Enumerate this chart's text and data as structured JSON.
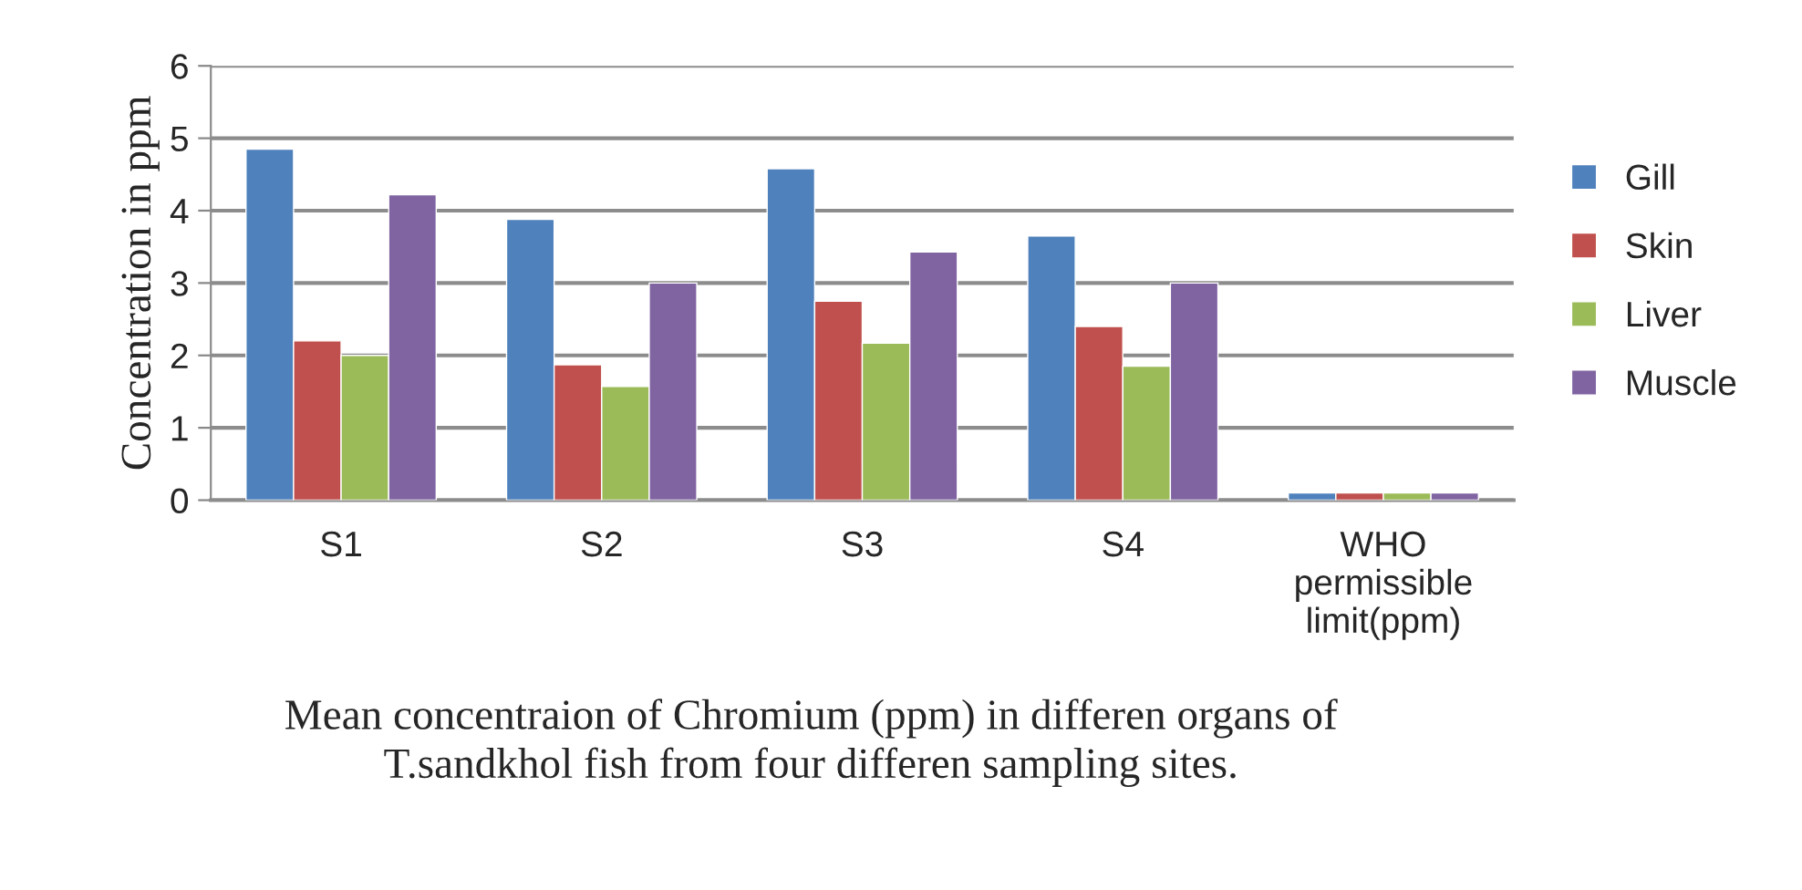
{
  "chart_data": {
    "type": "bar",
    "ylabel": "Concentration in ppm",
    "categories": [
      "S1",
      "S2",
      "S3",
      "S4",
      "WHO\npermissible\nlimit(ppm)"
    ],
    "series": [
      {
        "name": "Gill",
        "color": "#4f81bd",
        "values": [
          4.85,
          3.88,
          4.58,
          3.65,
          0.1
        ]
      },
      {
        "name": "Skin",
        "color": "#c0504d",
        "values": [
          2.2,
          1.87,
          2.75,
          2.4,
          0.1
        ]
      },
      {
        "name": "Liver",
        "color": "#9bbb59",
        "values": [
          2.0,
          1.57,
          2.17,
          1.85,
          0.1
        ]
      },
      {
        "name": "Muscle",
        "color": "#8064a2",
        "values": [
          4.22,
          3.0,
          3.43,
          3.0,
          0.1
        ]
      }
    ],
    "ylim": [
      0,
      6
    ],
    "yticks": [
      0,
      1,
      2,
      3,
      4,
      5,
      6
    ],
    "grid": "y",
    "legend": "right",
    "annotations": [
      "Mean concentraion of Chromium (ppm) in differen organs of\nT.sandkhol fish from four differen sampling sites."
    ]
  }
}
